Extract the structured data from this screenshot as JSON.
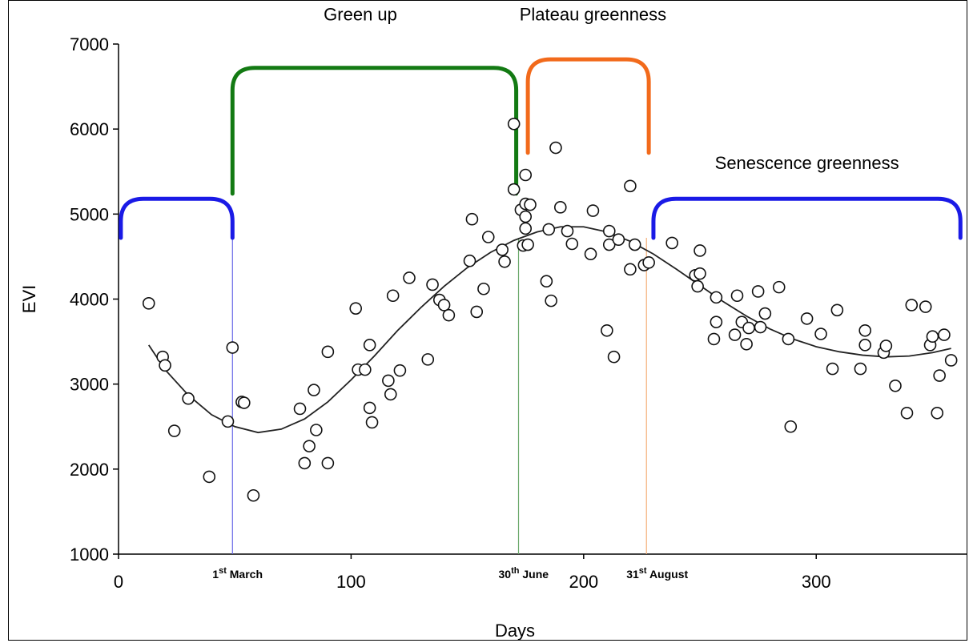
{
  "chart_data": {
    "type": "scatter",
    "title": "",
    "xlabel": "Days",
    "ylabel": "EVI",
    "xlim": [
      0,
      365
    ],
    "ylim": [
      1000,
      7000
    ],
    "x_ticks": [
      0,
      100,
      200,
      300
    ],
    "y_ticks": [
      1000,
      2000,
      3000,
      4000,
      5000,
      6000,
      7000
    ],
    "grid": false,
    "legend": "none",
    "points": [
      {
        "x": 13,
        "y": 3950
      },
      {
        "x": 19,
        "y": 3320
      },
      {
        "x": 20,
        "y": 3220
      },
      {
        "x": 24,
        "y": 2450
      },
      {
        "x": 30,
        "y": 2830
      },
      {
        "x": 39,
        "y": 1910
      },
      {
        "x": 47,
        "y": 2560
      },
      {
        "x": 49,
        "y": 3430
      },
      {
        "x": 53,
        "y": 2790
      },
      {
        "x": 54,
        "y": 2780
      },
      {
        "x": 58,
        "y": 1690
      },
      {
        "x": 78,
        "y": 2710
      },
      {
        "x": 80,
        "y": 2070
      },
      {
        "x": 82,
        "y": 2270
      },
      {
        "x": 84,
        "y": 2930
      },
      {
        "x": 85,
        "y": 2460
      },
      {
        "x": 90,
        "y": 3380
      },
      {
        "x": 90,
        "y": 2070
      },
      {
        "x": 102,
        "y": 3890
      },
      {
        "x": 103,
        "y": 3170
      },
      {
        "x": 106,
        "y": 3170
      },
      {
        "x": 108,
        "y": 3460
      },
      {
        "x": 108,
        "y": 2720
      },
      {
        "x": 109,
        "y": 2550
      },
      {
        "x": 116,
        "y": 3040
      },
      {
        "x": 117,
        "y": 2880
      },
      {
        "x": 118,
        "y": 4040
      },
      {
        "x": 121,
        "y": 3160
      },
      {
        "x": 125,
        "y": 4250
      },
      {
        "x": 133,
        "y": 3290
      },
      {
        "x": 135,
        "y": 4170
      },
      {
        "x": 138,
        "y": 3990
      },
      {
        "x": 140,
        "y": 3930
      },
      {
        "x": 142,
        "y": 3810
      },
      {
        "x": 151,
        "y": 4450
      },
      {
        "x": 152,
        "y": 4940
      },
      {
        "x": 154,
        "y": 3850
      },
      {
        "x": 157,
        "y": 4120
      },
      {
        "x": 159,
        "y": 4730
      },
      {
        "x": 165,
        "y": 4580
      },
      {
        "x": 166,
        "y": 4440
      },
      {
        "x": 170,
        "y": 6060
      },
      {
        "x": 170,
        "y": 5290
      },
      {
        "x": 173,
        "y": 5050
      },
      {
        "x": 174,
        "y": 4630
      },
      {
        "x": 175,
        "y": 5460
      },
      {
        "x": 175,
        "y": 5120
      },
      {
        "x": 175,
        "y": 4970
      },
      {
        "x": 175,
        "y": 4830
      },
      {
        "x": 176,
        "y": 4640
      },
      {
        "x": 177,
        "y": 5110
      },
      {
        "x": 184,
        "y": 4210
      },
      {
        "x": 185,
        "y": 4820
      },
      {
        "x": 186,
        "y": 3980
      },
      {
        "x": 188,
        "y": 5780
      },
      {
        "x": 190,
        "y": 5080
      },
      {
        "x": 193,
        "y": 4800
      },
      {
        "x": 195,
        "y": 4650
      },
      {
        "x": 203,
        "y": 4530
      },
      {
        "x": 204,
        "y": 5040
      },
      {
        "x": 210,
        "y": 3630
      },
      {
        "x": 211,
        "y": 4800
      },
      {
        "x": 211,
        "y": 4640
      },
      {
        "x": 213,
        "y": 3320
      },
      {
        "x": 215,
        "y": 4700
      },
      {
        "x": 220,
        "y": 5330
      },
      {
        "x": 220,
        "y": 4350
      },
      {
        "x": 222,
        "y": 4640
      },
      {
        "x": 226,
        "y": 4400
      },
      {
        "x": 228,
        "y": 4430
      },
      {
        "x": 238,
        "y": 4660
      },
      {
        "x": 248,
        "y": 4280
      },
      {
        "x": 249,
        "y": 4150
      },
      {
        "x": 250,
        "y": 4570
      },
      {
        "x": 250,
        "y": 4300
      },
      {
        "x": 257,
        "y": 4020
      },
      {
        "x": 257,
        "y": 3730
      },
      {
        "x": 256,
        "y": 3530
      },
      {
        "x": 265,
        "y": 3580
      },
      {
        "x": 266,
        "y": 4040
      },
      {
        "x": 268,
        "y": 3730
      },
      {
        "x": 270,
        "y": 3470
      },
      {
        "x": 271,
        "y": 3660
      },
      {
        "x": 275,
        "y": 4090
      },
      {
        "x": 276,
        "y": 3670
      },
      {
        "x": 278,
        "y": 3830
      },
      {
        "x": 284,
        "y": 4140
      },
      {
        "x": 288,
        "y": 3530
      },
      {
        "x": 289,
        "y": 2500
      },
      {
        "x": 296,
        "y": 3770
      },
      {
        "x": 302,
        "y": 3590
      },
      {
        "x": 307,
        "y": 3180
      },
      {
        "x": 309,
        "y": 3870
      },
      {
        "x": 319,
        "y": 3180
      },
      {
        "x": 321,
        "y": 3630
      },
      {
        "x": 321,
        "y": 3460
      },
      {
        "x": 329,
        "y": 3370
      },
      {
        "x": 330,
        "y": 3450
      },
      {
        "x": 334,
        "y": 2980
      },
      {
        "x": 339,
        "y": 2660
      },
      {
        "x": 341,
        "y": 3930
      },
      {
        "x": 347,
        "y": 3910
      },
      {
        "x": 349,
        "y": 3460
      },
      {
        "x": 350,
        "y": 3560
      },
      {
        "x": 352,
        "y": 2660
      },
      {
        "x": 353,
        "y": 3100
      },
      {
        "x": 355,
        "y": 3580
      },
      {
        "x": 358,
        "y": 3280
      }
    ],
    "fit_curve": [
      {
        "x": 13,
        "y": 3460
      },
      {
        "x": 20,
        "y": 3170
      },
      {
        "x": 30,
        "y": 2870
      },
      {
        "x": 40,
        "y": 2640
      },
      {
        "x": 50,
        "y": 2500
      },
      {
        "x": 60,
        "y": 2430
      },
      {
        "x": 70,
        "y": 2470
      },
      {
        "x": 80,
        "y": 2590
      },
      {
        "x": 90,
        "y": 2790
      },
      {
        "x": 100,
        "y": 3050
      },
      {
        "x": 110,
        "y": 3330
      },
      {
        "x": 120,
        "y": 3630
      },
      {
        "x": 130,
        "y": 3900
      },
      {
        "x": 140,
        "y": 4150
      },
      {
        "x": 150,
        "y": 4370
      },
      {
        "x": 160,
        "y": 4550
      },
      {
        "x": 170,
        "y": 4690
      },
      {
        "x": 180,
        "y": 4790
      },
      {
        "x": 190,
        "y": 4850
      },
      {
        "x": 200,
        "y": 4850
      },
      {
        "x": 210,
        "y": 4790
      },
      {
        "x": 220,
        "y": 4680
      },
      {
        "x": 230,
        "y": 4530
      },
      {
        "x": 240,
        "y": 4350
      },
      {
        "x": 250,
        "y": 4160
      },
      {
        "x": 260,
        "y": 3970
      },
      {
        "x": 270,
        "y": 3800
      },
      {
        "x": 280,
        "y": 3650
      },
      {
        "x": 290,
        "y": 3530
      },
      {
        "x": 300,
        "y": 3440
      },
      {
        "x": 310,
        "y": 3380
      },
      {
        "x": 320,
        "y": 3340
      },
      {
        "x": 330,
        "y": 3320
      },
      {
        "x": 340,
        "y": 3330
      },
      {
        "x": 350,
        "y": 3370
      },
      {
        "x": 358,
        "y": 3420
      }
    ],
    "markers": [
      {
        "day": 49,
        "sup": "st",
        "pre": "1",
        "post": " March",
        "color": "#6a6ae8"
      },
      {
        "day": 172,
        "sup": "th",
        "pre": "30",
        "post": " June",
        "color": "#6aa86a"
      },
      {
        "day": 227,
        "sup": "st",
        "pre": "31",
        "post": " August",
        "color": "#f5b07a"
      }
    ],
    "phases": [
      {
        "label": "",
        "start": 1,
        "end": 49,
        "top": 5180,
        "bottom": 4720,
        "color": "#1a1ae6"
      },
      {
        "label": "Green up",
        "start": 49,
        "end": 171,
        "top": 6720,
        "bottom": 5240,
        "color": "#137a13"
      },
      {
        "label": "Plateau greenness",
        "start": 176,
        "end": 228,
        "top": 6820,
        "bottom": 5720,
        "color": "#f26a1b"
      },
      {
        "label": "Senescence greenness",
        "start": 230,
        "end": 362,
        "top": 5180,
        "bottom": 4720,
        "color": "#1a1ae6"
      }
    ]
  }
}
